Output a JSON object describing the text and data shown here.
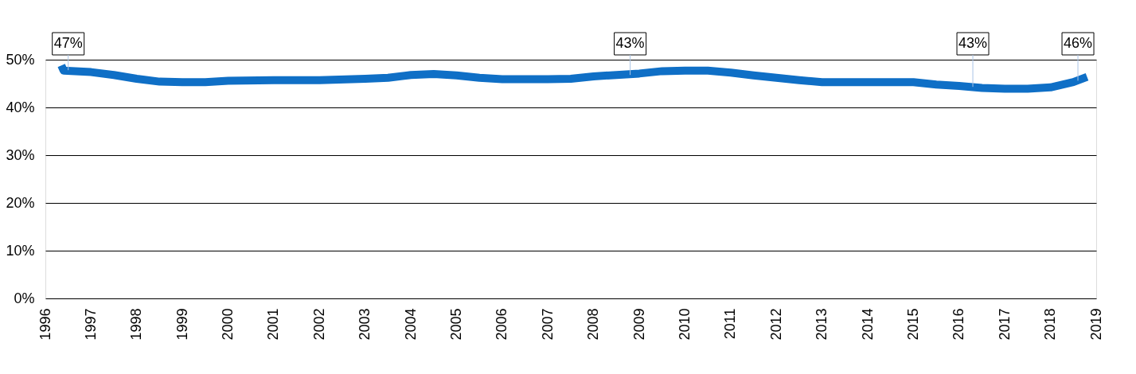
{
  "chart_data": {
    "type": "line",
    "x": [
      1996.35,
      1996.4,
      1997.0,
      1997.5,
      1998.0,
      1998.5,
      1999.0,
      1999.5,
      2000.0,
      2001.0,
      2002.0,
      2003.0,
      2003.5,
      2004.0,
      2004.5,
      2005.0,
      2005.5,
      2006.0,
      2007.0,
      2007.5,
      2008.0,
      2008.5,
      2009.0,
      2009.5,
      2010.0,
      2010.5,
      2011.0,
      2011.5,
      2012.0,
      2012.5,
      2013.0,
      2014.0,
      2015.0,
      2015.5,
      2016.0,
      2016.5,
      2017.0,
      2017.5,
      2018.0,
      2018.5,
      2018.8
    ],
    "series": [
      {
        "color": "#0f6fc6",
        "values": [
          48.8,
          47.7,
          47.4,
          46.8,
          46.0,
          45.4,
          45.3,
          45.3,
          45.6,
          45.7,
          45.7,
          46.0,
          46.2,
          46.8,
          47.0,
          46.7,
          46.2,
          45.9,
          45.9,
          46.0,
          46.5,
          46.8,
          47.1,
          47.6,
          47.7,
          47.7,
          47.3,
          46.7,
          46.2,
          45.7,
          45.3,
          45.3,
          45.3,
          44.8,
          44.5,
          44.1,
          43.9,
          43.9,
          44.2,
          45.3,
          46.4
        ]
      }
    ],
    "xlim": [
      1996,
      2019
    ],
    "xticks": [
      1996,
      1997,
      1998,
      1999,
      2000,
      2001,
      2002,
      2003,
      2004,
      2005,
      2006,
      2007,
      2008,
      2009,
      2010,
      2011,
      2012,
      2013,
      2014,
      2015,
      2016,
      2017,
      2018,
      2019
    ],
    "ylim": [
      0,
      50
    ],
    "yticks": [
      {
        "value": 0,
        "label": "0%"
      },
      {
        "value": 10,
        "label": "10%"
      },
      {
        "value": 20,
        "label": "20%"
      },
      {
        "value": 30,
        "label": "30%"
      },
      {
        "value": 40,
        "label": "40%"
      },
      {
        "value": 50,
        "label": "50%"
      }
    ],
    "grid": "y",
    "marker": "none",
    "line_style": "solid",
    "annotations": [
      {
        "text": "47%",
        "x": 1996.5,
        "y": 47.8
      },
      {
        "text": "43%",
        "x": 2008.8,
        "y": 46.8
      },
      {
        "text": "43%",
        "x": 2016.3,
        "y": 44.3
      },
      {
        "text": "46%",
        "x": 2018.6,
        "y": 45.6
      }
    ]
  }
}
